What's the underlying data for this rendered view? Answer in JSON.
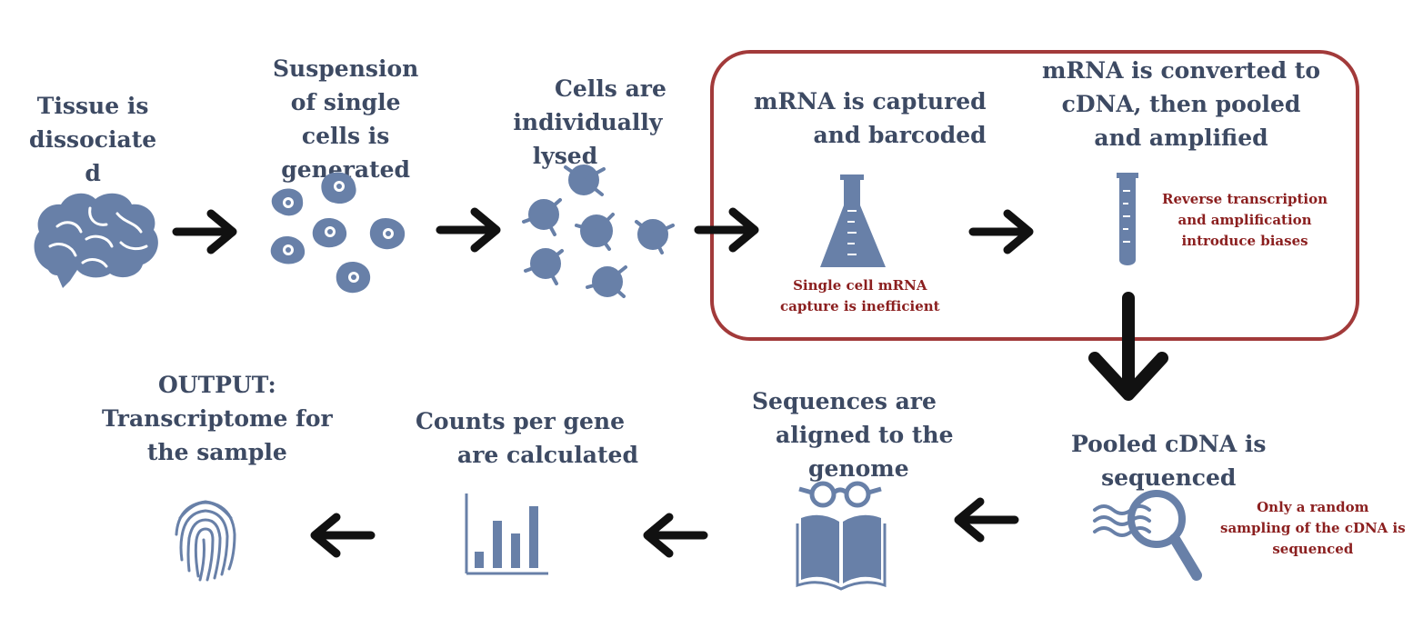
{
  "colors": {
    "icon": "#6880a8",
    "icon_dark": "#4f6790",
    "text": "#3d4a63",
    "note": "#8b1f1f",
    "highlight_box": "#a23a3a",
    "arrow": "#111111"
  },
  "steps": [
    {
      "id": "dissociate",
      "lines": [
        "Tissue is",
        "dissociate",
        "d"
      ],
      "icon": "brain-icon"
    },
    {
      "id": "suspension",
      "lines": [
        "Suspension",
        "of single",
        "cells is",
        "generated"
      ],
      "icon": "cells-icon"
    },
    {
      "id": "lysis",
      "lines": [
        "Cells are",
        "individually",
        "lysed"
      ],
      "icon": "lysed-cells-icon"
    },
    {
      "id": "capture",
      "lines": [
        "mRNA is captured",
        "and barcoded"
      ],
      "icon": "flask-icon"
    },
    {
      "id": "convert",
      "lines": [
        "mRNA is converted to",
        "cDNA, then pooled",
        "and amplified"
      ],
      "icon": "test-tube-icon"
    },
    {
      "id": "sequence",
      "lines": [
        "Pooled cDNA is",
        "sequenced"
      ],
      "icon": "magnifier-icon"
    },
    {
      "id": "align",
      "lines": [
        "Sequences are",
        "aligned to the",
        "genome"
      ],
      "icon": "book-glasses-icon"
    },
    {
      "id": "count",
      "lines": [
        "Counts per gene",
        "are calculated"
      ],
      "icon": "bar-chart-icon"
    },
    {
      "id": "output",
      "lines": [
        "OUTPUT:",
        "Transcriptome for",
        "the sample"
      ],
      "icon": "fingerprint-icon"
    }
  ],
  "notes": {
    "capture": [
      "Single cell mRNA",
      "capture is inefficient"
    ],
    "convert": [
      "Reverse transcription",
      "and amplification",
      "introduce biases"
    ],
    "sequence": [
      "Only a  random",
      "sampling of the cDNA is",
      "sequenced"
    ]
  }
}
